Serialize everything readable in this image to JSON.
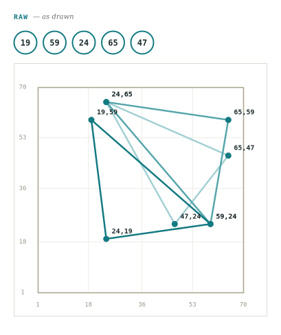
{
  "header": {
    "label": "RAW",
    "note": "— as drawn"
  },
  "chips": [
    19,
    59,
    24,
    65,
    47
  ],
  "chart_data": {
    "type": "line",
    "xlim": [
      1,
      70
    ],
    "ylim": [
      1,
      70
    ],
    "xticks": [
      1,
      18,
      36,
      53,
      70
    ],
    "yticks": [
      1,
      18,
      36,
      53,
      70
    ],
    "grid": true,
    "marker_color": "#137a82",
    "series": [
      {
        "color": "#137a82",
        "x": [
          19,
          59,
          24
        ],
        "values": [
          59,
          24,
          19
        ],
        "value_labels": [
          "19,59",
          "59,24",
          "24,19"
        ]
      },
      {
        "color": "#56a6ab",
        "x": [
          59,
          24,
          65
        ],
        "values": [
          24,
          65,
          59
        ],
        "value_labels": [
          "59,24",
          "24,65",
          "65,59"
        ]
      },
      {
        "color": "#a3d0d3",
        "x": [
          24,
          65,
          47
        ],
        "values": [
          65,
          47,
          24
        ],
        "value_labels": [
          "24,65",
          "65,47",
          "47,24"
        ]
      }
    ]
  }
}
